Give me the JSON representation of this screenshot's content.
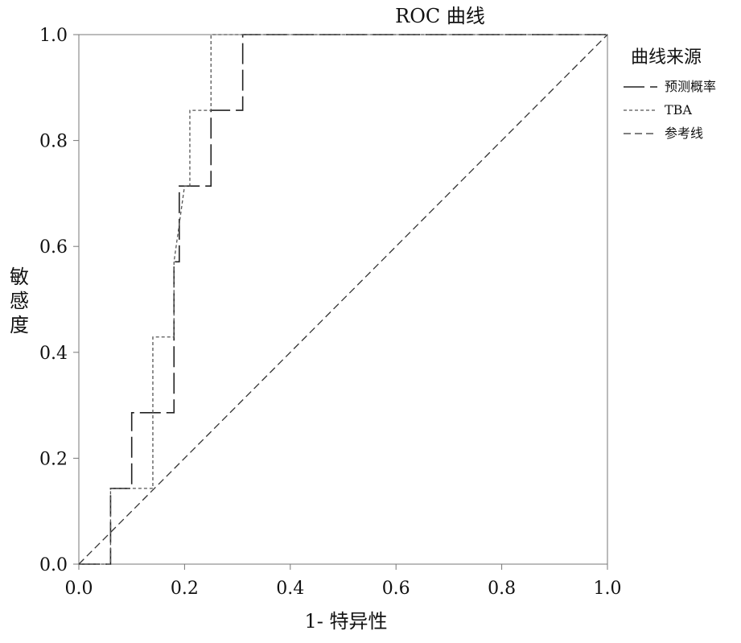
{
  "chart_data": {
    "type": "line",
    "title": "ROC 曲线",
    "xlabel": "1- 特异性",
    "ylabel": "敏感度",
    "xlim": [
      0,
      1
    ],
    "ylim": [
      0,
      1
    ],
    "x_ticks": [
      "0.0",
      "0.2",
      "0.4",
      "0.6",
      "0.8",
      "1.0"
    ],
    "y_ticks": [
      "0.0",
      "0.2",
      "0.4",
      "0.6",
      "0.8",
      "1.0"
    ],
    "grid": false,
    "legend": {
      "title": "曲线来源",
      "position": "right"
    },
    "series": [
      {
        "name": "预测概率",
        "line_style": "long-dash",
        "color": "#222222",
        "points": [
          [
            0,
            0
          ],
          [
            0.06,
            0
          ],
          [
            0.06,
            0.143
          ],
          [
            0.1,
            0.143
          ],
          [
            0.1,
            0.286
          ],
          [
            0.18,
            0.286
          ],
          [
            0.18,
            0.571
          ],
          [
            0.19,
            0.571
          ],
          [
            0.19,
            0.714
          ],
          [
            0.25,
            0.714
          ],
          [
            0.25,
            0.857
          ],
          [
            0.31,
            0.857
          ],
          [
            0.31,
            1
          ],
          [
            1,
            1
          ]
        ]
      },
      {
        "name": "TBA",
        "line_style": "short-dash",
        "color": "#555555",
        "points": [
          [
            0,
            0
          ],
          [
            0.06,
            0
          ],
          [
            0.06,
            0.143
          ],
          [
            0.14,
            0.143
          ],
          [
            0.14,
            0.429
          ],
          [
            0.18,
            0.429
          ],
          [
            0.18,
            0.571
          ],
          [
            0.2,
            0.714
          ],
          [
            0.21,
            0.714
          ],
          [
            0.21,
            0.857
          ],
          [
            0.25,
            0.857
          ],
          [
            0.25,
            1
          ],
          [
            1,
            1
          ]
        ]
      },
      {
        "name": "参考线",
        "line_style": "dash",
        "color": "#333333",
        "points": [
          [
            0,
            0
          ],
          [
            1,
            1
          ]
        ]
      }
    ]
  }
}
